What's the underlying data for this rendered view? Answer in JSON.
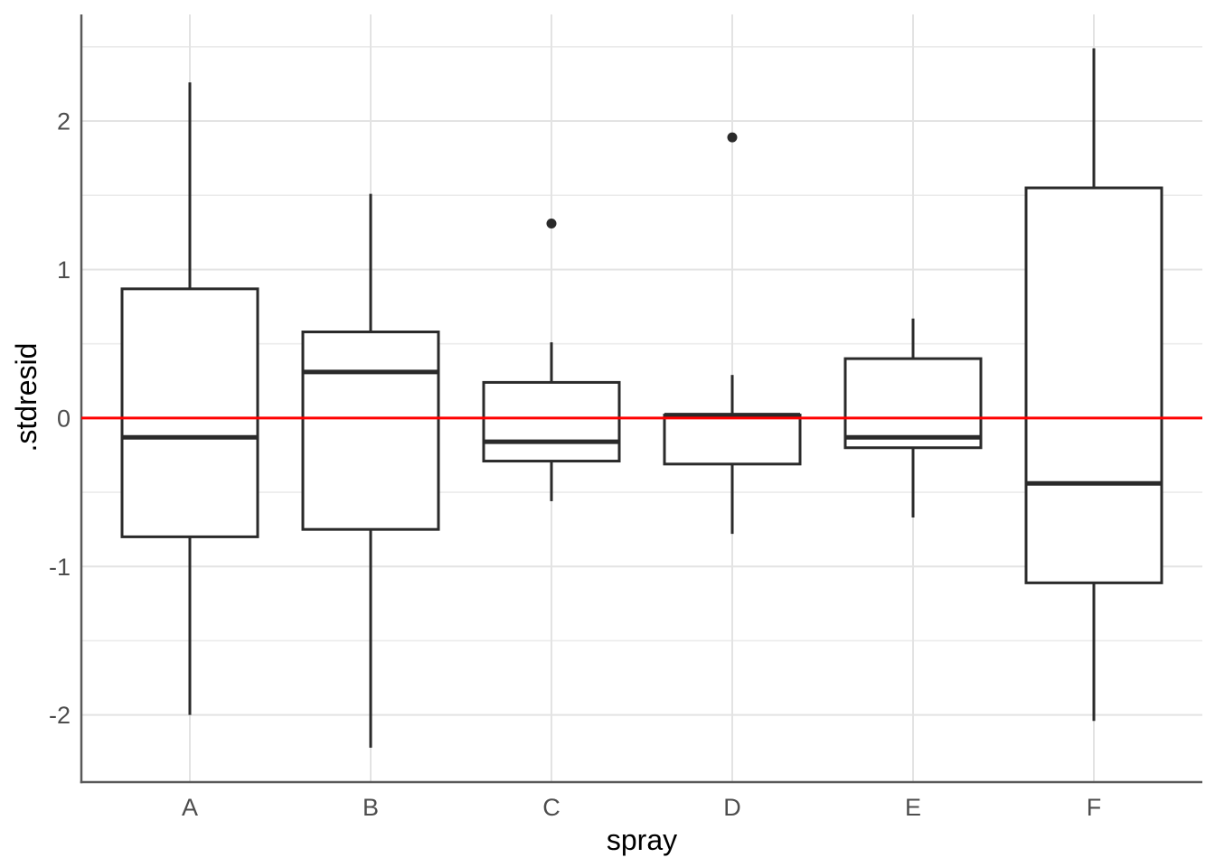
{
  "chart_data": {
    "type": "boxplot",
    "title": "",
    "xlabel": "spray",
    "ylabel": ".stdresid",
    "categories": [
      "A",
      "B",
      "C",
      "D",
      "E",
      "F"
    ],
    "series": [
      {
        "name": "A",
        "whisker_low": -2.0,
        "q1": -0.8,
        "median": -0.13,
        "q3": 0.87,
        "whisker_high": 2.26,
        "outliers": []
      },
      {
        "name": "B",
        "whisker_low": -2.22,
        "q1": -0.75,
        "median": 0.31,
        "q3": 0.58,
        "whisker_high": 1.51,
        "outliers": []
      },
      {
        "name": "C",
        "whisker_low": -0.56,
        "q1": -0.29,
        "median": -0.16,
        "q3": 0.24,
        "whisker_high": 0.51,
        "outliers": [
          1.31
        ]
      },
      {
        "name": "D",
        "whisker_low": -0.78,
        "q1": -0.31,
        "median": 0.02,
        "q3": 0.02,
        "whisker_high": 0.29,
        "outliers": [
          1.89
        ]
      },
      {
        "name": "E",
        "whisker_low": -0.67,
        "q1": -0.2,
        "median": -0.13,
        "q3": 0.4,
        "whisker_high": 0.67,
        "outliers": []
      },
      {
        "name": "F",
        "whisker_low": -2.04,
        "q1": -1.11,
        "median": -0.44,
        "q3": 1.55,
        "whisker_high": 2.49,
        "outliers": []
      }
    ],
    "y_major_ticks": [
      {
        "value": 2,
        "label": "2"
      },
      {
        "value": 1,
        "label": "1"
      },
      {
        "value": 0,
        "label": "0"
      },
      {
        "value": -1,
        "label": "-1"
      },
      {
        "value": -2,
        "label": "-2"
      }
    ],
    "y_minor_ticks": [
      2.5,
      1.5,
      0.5,
      -0.5,
      -1.5
    ],
    "ylim": [
      -2.452,
      2.718
    ],
    "reference_line": {
      "y": 0,
      "color": "#ff0000"
    },
    "grid": "on",
    "legend": "none",
    "colors": {
      "background": "#ffffff",
      "box_stroke": "#2a2a2a",
      "box_fill": "#ffffff",
      "outlier": "#2a2a2a",
      "grid_major": "#e3e3e3",
      "grid_minor": "#ebebeb",
      "axis_line": "#595959",
      "tick_text": "#4d4d4d",
      "title_text": "#000000",
      "reference": "#ff0000"
    }
  }
}
